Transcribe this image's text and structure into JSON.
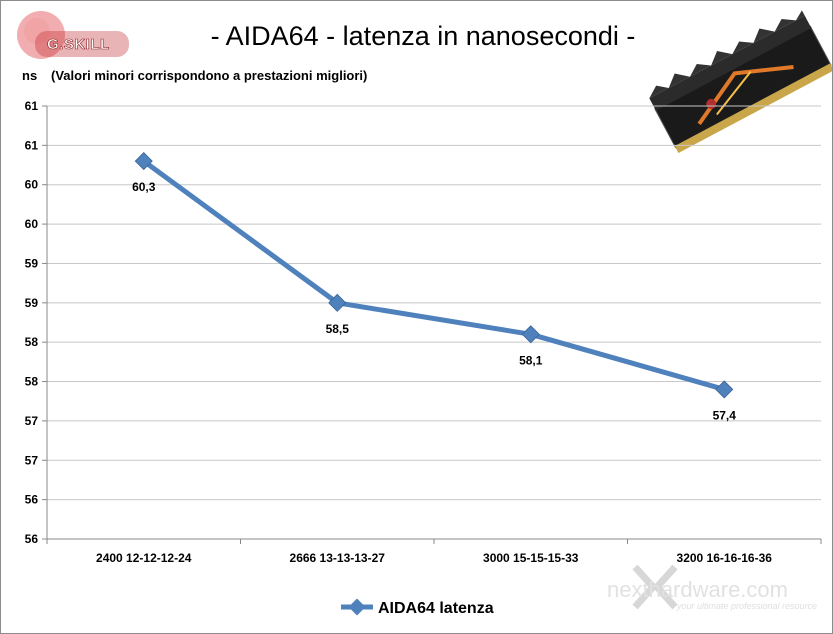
{
  "chart_data": {
    "type": "line",
    "title": "- AIDA64 - latenza in nanosecondi -",
    "ylabel": "ns",
    "subtitle": "(Valori minori corrispondono a prestazioni  migliori)",
    "categories": [
      "2400 12-12-12-24",
      "2666 13-13-13-27",
      "3000 15-15-15-33",
      "3200 16-16-16-36"
    ],
    "series": [
      {
        "name": "AIDA64 latenza",
        "values": [
          60.3,
          58.5,
          58.1,
          57.4
        ],
        "labels": [
          "60,3",
          "58,5",
          "58,1",
          "57,4"
        ],
        "color": "#4f81bd"
      }
    ],
    "ylim": [
      55.5,
      61
    ],
    "yticks": [
      55.5,
      56,
      56.5,
      57,
      57.5,
      58,
      58.5,
      59,
      59.5,
      60,
      60.5,
      61
    ],
    "ytick_labels": [
      "56",
      "56",
      "57",
      "57",
      "58",
      "58",
      "59",
      "59",
      "60",
      "60",
      "61",
      "61"
    ],
    "grid": true,
    "legend_position": "bottom"
  },
  "logo": {
    "text": "G.SKILL",
    "icon": "gskill-logo-icon",
    "color": "#c0282d"
  },
  "product_image": {
    "icon": "ram-module-icon"
  },
  "watermark": {
    "text": "nexthardware.com",
    "tagline": "your ultimate professional resource"
  }
}
